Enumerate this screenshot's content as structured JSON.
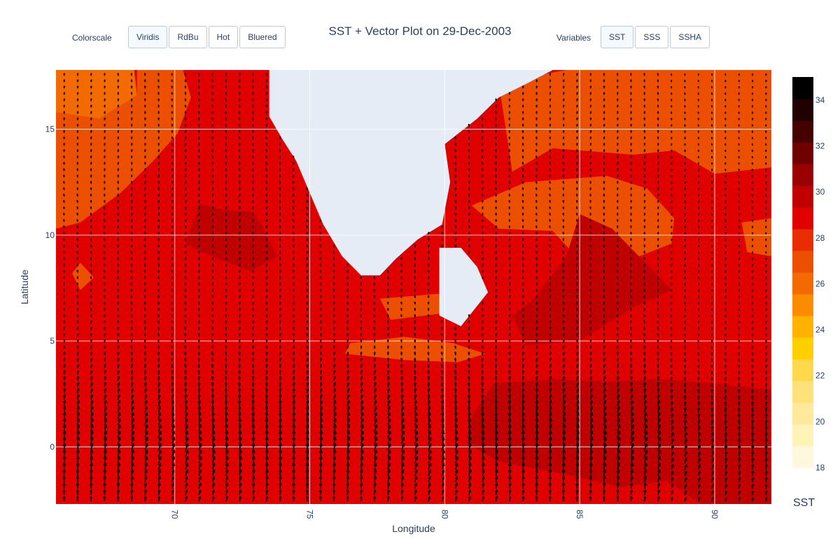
{
  "controls": {
    "colorscale_label": "Colorscale",
    "colorscale_buttons": [
      "Viridis",
      "RdBu",
      "Hot",
      "Bluered"
    ],
    "colorscale_active": 0,
    "variables_label": "Variables",
    "variable_buttons": [
      "SST",
      "SSS",
      "SSHA"
    ],
    "variable_active": 0
  },
  "colors": {
    "land": "#e5ecf6",
    "arrow": "#000000",
    "text": "#2a3f5f"
  },
  "chart_data": {
    "type": "heatmap",
    "title": "SST + Vector Plot on 29-Dec-2003",
    "xlabel": "Longitude",
    "ylabel": "Latitude",
    "xlim": [
      65.6,
      92.1
    ],
    "ylim": [
      -2.7,
      17.8
    ],
    "x_ticks": [
      70,
      75,
      80,
      85,
      90
    ],
    "y_ticks": [
      0,
      5,
      10,
      15
    ],
    "colorbar": {
      "title": "SST",
      "range": [
        18,
        35
      ],
      "ticks": [
        18,
        20,
        22,
        24,
        26,
        28,
        30,
        32,
        34
      ],
      "levels": [
        "#fff8dc",
        "#fff3b8",
        "#ffe99a",
        "#ffe17a",
        "#ffd84c",
        "#ffcf00",
        "#ffb300",
        "#fb8c00",
        "#f26a00",
        "#ec4f00",
        "#e82e00",
        "#e00000",
        "#c00000",
        "#9a0000",
        "#700000",
        "#450000",
        "#200000",
        "#000000"
      ]
    },
    "sst_background": 29,
    "sst_regions": [
      {
        "value": 26,
        "lonlat": [
          [
            65.6,
            17.8
          ],
          [
            68.5,
            17.8
          ],
          [
            68.6,
            16.6
          ],
          [
            67.2,
            15.5
          ],
          [
            65.6,
            15.8
          ]
        ]
      },
      {
        "value": 27,
        "lonlat": [
          [
            65.6,
            15.8
          ],
          [
            67.2,
            15.5
          ],
          [
            68.6,
            16.6
          ],
          [
            68.6,
            17.8
          ],
          [
            70.3,
            17.8
          ],
          [
            70.6,
            16.5
          ],
          [
            70.1,
            14.8
          ],
          [
            69.2,
            13.5
          ],
          [
            68.0,
            12.0
          ],
          [
            66.5,
            10.6
          ],
          [
            65.6,
            10.3
          ]
        ]
      },
      {
        "value": 27,
        "lonlat": [
          [
            82.0,
            17.2
          ],
          [
            84.5,
            17.8
          ],
          [
            92.1,
            17.8
          ],
          [
            92.1,
            13.2
          ],
          [
            90.0,
            12.9
          ],
          [
            88.5,
            14.0
          ],
          [
            87.0,
            13.8
          ],
          [
            84.0,
            14.1
          ],
          [
            82.5,
            13.0
          ]
        ]
      },
      {
        "value": 27,
        "lonlat": [
          [
            83.0,
            12.5
          ],
          [
            86.0,
            12.8
          ],
          [
            87.5,
            12.2
          ],
          [
            88.5,
            10.8
          ],
          [
            88.4,
            9.6
          ],
          [
            87.0,
            8.9
          ],
          [
            85.0,
            8.8
          ],
          [
            84.0,
            10.2
          ],
          [
            82.0,
            10.3
          ],
          [
            81.0,
            11.4
          ]
        ]
      },
      {
        "value": 27,
        "lonlat": [
          [
            76.5,
            4.9
          ],
          [
            78.5,
            5.2
          ],
          [
            80.3,
            4.9
          ],
          [
            81.5,
            4.4
          ],
          [
            80.5,
            4.0
          ],
          [
            78.5,
            4.1
          ],
          [
            76.3,
            4.4
          ]
        ]
      },
      {
        "value": 27,
        "lonlat": [
          [
            77.6,
            7.0
          ],
          [
            80.4,
            7.3
          ],
          [
            79.9,
            6.3
          ],
          [
            78.0,
            6.0
          ]
        ]
      },
      {
        "value": 27,
        "lonlat": [
          [
            66.5,
            7.4
          ],
          [
            66.2,
            8.2
          ],
          [
            66.5,
            8.7
          ],
          [
            67.0,
            8.0
          ]
        ]
      },
      {
        "value": 27,
        "lonlat": [
          [
            91.0,
            10.6
          ],
          [
            92.1,
            10.8
          ],
          [
            92.1,
            9.0
          ],
          [
            91.2,
            9.2
          ]
        ]
      },
      {
        "value": 30,
        "lonlat": [
          [
            70.4,
            9.6
          ],
          [
            70.9,
            11.5
          ],
          [
            71.8,
            11.2
          ],
          [
            72.9,
            11.1
          ],
          [
            73.2,
            10.5
          ],
          [
            73.8,
            9.0
          ],
          [
            72.8,
            8.3
          ],
          [
            71.0,
            9.2
          ]
        ]
      },
      {
        "value": 30,
        "lonlat": [
          [
            85.0,
            11.0
          ],
          [
            86.2,
            10.3
          ],
          [
            87.8,
            8.2
          ],
          [
            88.4,
            7.4
          ],
          [
            87.0,
            6.6
          ],
          [
            85.0,
            5.0
          ],
          [
            83.0,
            4.8
          ],
          [
            82.5,
            6.2
          ],
          [
            83.3,
            7.0
          ],
          [
            84.5,
            9.0
          ]
        ]
      },
      {
        "value": 30,
        "lonlat": [
          [
            81.8,
            3.0
          ],
          [
            84.0,
            3.2
          ],
          [
            86.0,
            3.1
          ],
          [
            88.0,
            3.2
          ],
          [
            90.0,
            3.0
          ],
          [
            92.1,
            2.7
          ],
          [
            92.1,
            -2.7
          ],
          [
            89.5,
            -2.7
          ],
          [
            88.2,
            -1.6
          ],
          [
            86.5,
            -1.9
          ],
          [
            84.5,
            -1.3
          ],
          [
            82.0,
            -0.7
          ],
          [
            80.8,
            0.2
          ],
          [
            81.0,
            1.4
          ]
        ]
      }
    ],
    "land": [
      {
        "name": "India",
        "lonlat": [
          [
            73.5,
            17.8
          ],
          [
            73.5,
            15.6
          ],
          [
            74.0,
            14.5
          ],
          [
            74.5,
            13.5
          ],
          [
            75.0,
            12.0
          ],
          [
            75.5,
            10.5
          ],
          [
            76.2,
            9.0
          ],
          [
            76.9,
            8.1
          ],
          [
            77.6,
            8.1
          ],
          [
            78.2,
            8.9
          ],
          [
            79.0,
            9.8
          ],
          [
            79.9,
            10.5
          ],
          [
            80.2,
            12.5
          ],
          [
            80.0,
            14.3
          ],
          [
            81.2,
            15.5
          ],
          [
            82.0,
            16.5
          ],
          [
            83.1,
            17.2
          ],
          [
            84.0,
            17.8
          ]
        ]
      },
      {
        "name": "Sri Lanka",
        "lonlat": [
          [
            79.8,
            9.4
          ],
          [
            80.6,
            9.4
          ],
          [
            81.2,
            8.5
          ],
          [
            81.6,
            7.3
          ],
          [
            80.6,
            5.7
          ],
          [
            79.8,
            6.2
          ]
        ]
      }
    ],
    "vector_field": {
      "lon_step": 0.5,
      "lat_step": 0.3,
      "base_direction": "north",
      "equatorial_strengthening": true
    }
  }
}
